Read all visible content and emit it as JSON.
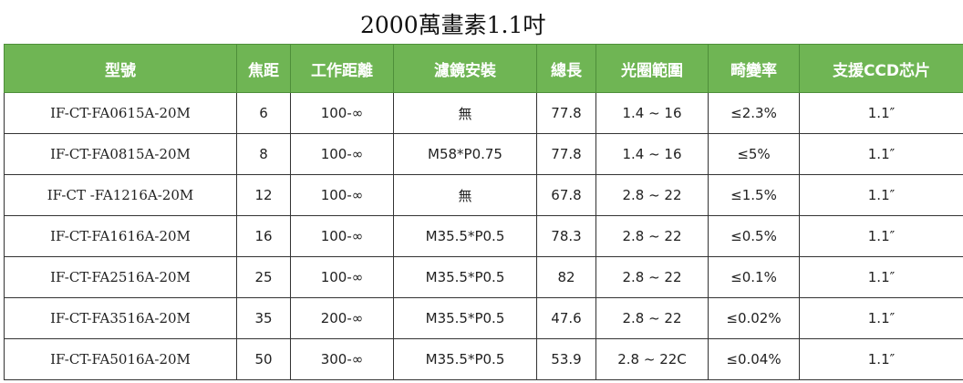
{
  "title": "2000萬畫素1.1吋",
  "colors": {
    "header_bg": "#6fb554",
    "header_text": "#ffffff",
    "border": "#333333"
  },
  "table": {
    "headers": [
      "型號",
      "焦距",
      "工作距離",
      "濾鏡安裝",
      "總長",
      "光圈範圍",
      "畸變率",
      "支援CCD芯片"
    ],
    "rows": [
      [
        "IF-CT-FA0615A-20M",
        "6",
        "100-∞",
        "無",
        "77.8",
        "1.4 ~ 16",
        "≤2.3%",
        "1.1″"
      ],
      [
        "IF-CT-FA0815A-20M",
        "8",
        "100-∞",
        "M58*P0.75",
        "77.8",
        "1.4 ~ 16",
        "≤5%",
        "1.1″"
      ],
      [
        "IF-CT -FA1216A-20M",
        "12",
        "100-∞",
        "無",
        "67.8",
        "2.8 ~ 22",
        "≤1.5%",
        "1.1″"
      ],
      [
        "IF-CT-FA1616A-20M",
        "16",
        "100-∞",
        "M35.5*P0.5",
        "78.3",
        "2.8 ~ 22",
        "≤0.5%",
        "1.1″"
      ],
      [
        "IF-CT-FA2516A-20M",
        "25",
        "100-∞",
        "M35.5*P0.5",
        "82",
        "2.8 ~ 22",
        "≤0.1%",
        "1.1″"
      ],
      [
        "IF-CT-FA3516A-20M",
        "35",
        "200-∞",
        "M35.5*P0.5",
        "47.6",
        "2.8 ~ 22",
        "≤0.02%",
        "1.1″"
      ],
      [
        "IF-CT-FA5016A-20M",
        "50",
        "300-∞",
        "M35.5*P0.5",
        "53.9",
        "2.8 ~ 22C",
        "≤0.04%",
        "1.1″"
      ]
    ]
  }
}
